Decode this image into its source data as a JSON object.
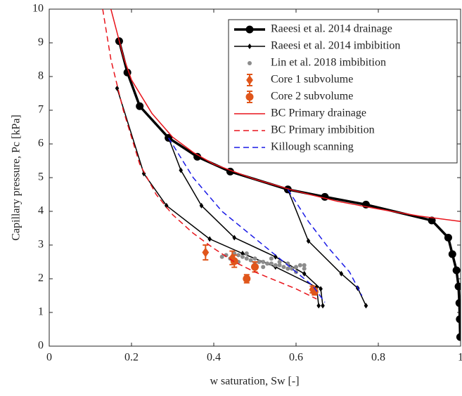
{
  "chart_data": {
    "type": "line",
    "x_label": "w saturation, Sw [-]",
    "y_label": "Capillary pressure, Pc [kPa]",
    "xlim": [
      0,
      1
    ],
    "ylim": [
      0,
      10
    ],
    "xticks": [
      0,
      0.2,
      0.4,
      0.6,
      0.8,
      1
    ],
    "yticks": [
      0,
      1,
      2,
      3,
      4,
      5,
      6,
      7,
      8,
      9,
      10
    ],
    "legend": "upper right",
    "series": [
      {
        "name": "Raeesi et al. 2014 drainage",
        "kind": "line",
        "color": "#000000",
        "width": 3.5,
        "marker": "circle",
        "dash": false,
        "x": [
          0.17,
          0.19,
          0.22,
          0.29,
          0.36,
          0.44,
          0.58,
          0.67,
          0.77,
          0.93,
          0.97,
          0.98,
          0.99,
          0.995,
          0.997,
          0.998,
          0.999
        ],
        "values": [
          9.05,
          8.12,
          7.12,
          6.18,
          5.62,
          5.18,
          4.65,
          4.43,
          4.2,
          3.73,
          3.22,
          2.73,
          2.25,
          1.77,
          1.28,
          0.8,
          0.27
        ]
      },
      {
        "name": "Raeesi et al. 2014 imbibition",
        "kind": "line",
        "color": "#000000",
        "width": 1.5,
        "marker": "diamond",
        "dash": false,
        "x": [
          0.165,
          0.23,
          0.285,
          0.39,
          0.47,
          0.55,
          0.65,
          0.655,
          null,
          0.29,
          0.32,
          0.37,
          0.45,
          0.55,
          0.62,
          0.66,
          0.665,
          null,
          0.58,
          0.63,
          0.71,
          0.75,
          0.77
        ],
        "values": [
          7.65,
          5.12,
          4.17,
          3.18,
          2.75,
          2.35,
          1.75,
          1.2,
          null,
          6.18,
          5.22,
          4.17,
          3.22,
          2.65,
          2.15,
          1.7,
          1.2,
          null,
          4.65,
          3.12,
          2.15,
          1.72,
          1.2
        ]
      },
      {
        "name": "Lin et al. 2018 imbibition",
        "kind": "scatter",
        "color": "#8c8c8c",
        "width": 0,
        "marker": "dot",
        "dash": false,
        "x": [
          0.42,
          0.43,
          0.44,
          0.45,
          0.46,
          0.47,
          0.48,
          0.49,
          0.5,
          0.51,
          0.52,
          0.53,
          0.54,
          0.55,
          0.56,
          0.57,
          0.58,
          0.59,
          0.6,
          0.61,
          0.62,
          0.46,
          0.48,
          0.5,
          0.52,
          0.54,
          0.56,
          0.58,
          0.6,
          0.62
        ],
        "values": [
          2.65,
          2.7,
          2.6,
          2.75,
          2.7,
          2.65,
          2.6,
          2.55,
          2.6,
          2.5,
          2.5,
          2.45,
          2.45,
          2.4,
          2.4,
          2.35,
          2.3,
          2.3,
          2.35,
          2.4,
          2.4,
          2.5,
          2.75,
          2.45,
          2.35,
          2.6,
          2.5,
          2.45,
          2.2,
          2.3
        ]
      },
      {
        "name": "Core 1 subvolume",
        "kind": "errorbar",
        "color": "#e0561b",
        "width": 2,
        "marker": "diamond",
        "dash": false,
        "x": [
          0.38,
          0.445,
          0.64
        ],
        "values": [
          2.78,
          2.62,
          1.68
        ],
        "error": [
          0.22,
          0.2,
          0.1
        ]
      },
      {
        "name": "Core 2 subvolume",
        "kind": "errorbar",
        "color": "#e0561b",
        "width": 2,
        "marker": "circle",
        "dash": false,
        "x": [
          0.45,
          0.48,
          0.5,
          0.645
        ],
        "values": [
          2.52,
          2.0,
          2.35,
          1.62
        ],
        "error": [
          0.18,
          0.12,
          0.15,
          0.1
        ]
      },
      {
        "name": "BC Primary drainage",
        "kind": "line",
        "color": "#e8141b",
        "width": 1.5,
        "marker": "none",
        "dash": false,
        "x": [
          0.15,
          0.18,
          0.2,
          0.25,
          0.3,
          0.35,
          0.4,
          0.5,
          0.6,
          0.7,
          0.8,
          0.9,
          1.0
        ],
        "values": [
          10,
          8.6,
          7.9,
          6.9,
          6.2,
          5.75,
          5.4,
          4.95,
          4.6,
          4.3,
          4.07,
          3.86,
          3.7
        ]
      },
      {
        "name": "BC Primary imbibition",
        "kind": "line",
        "color": "#e8141b",
        "width": 1.5,
        "marker": "none",
        "dash": true,
        "x": [
          0.13,
          0.15,
          0.18,
          0.22,
          0.26,
          0.3,
          0.35,
          0.4,
          0.45,
          0.5,
          0.55,
          0.6,
          0.65
        ],
        "values": [
          10,
          8.5,
          7.0,
          5.4,
          4.5,
          3.9,
          3.35,
          2.9,
          2.5,
          2.2,
          1.95,
          1.7,
          1.4
        ]
      },
      {
        "name": "Killough scanning",
        "kind": "line",
        "color": "#1a1ae6",
        "width": 1.5,
        "marker": "none",
        "dash": true,
        "x": [
          0.29,
          0.35,
          0.42,
          0.5,
          0.58,
          0.64,
          0.67,
          null,
          0.58,
          0.63,
          0.68,
          0.73,
          0.76
        ],
        "values": [
          6.18,
          5.0,
          4.0,
          3.2,
          2.4,
          1.8,
          1.3,
          null,
          4.65,
          3.7,
          2.9,
          2.2,
          1.5
        ]
      }
    ]
  }
}
